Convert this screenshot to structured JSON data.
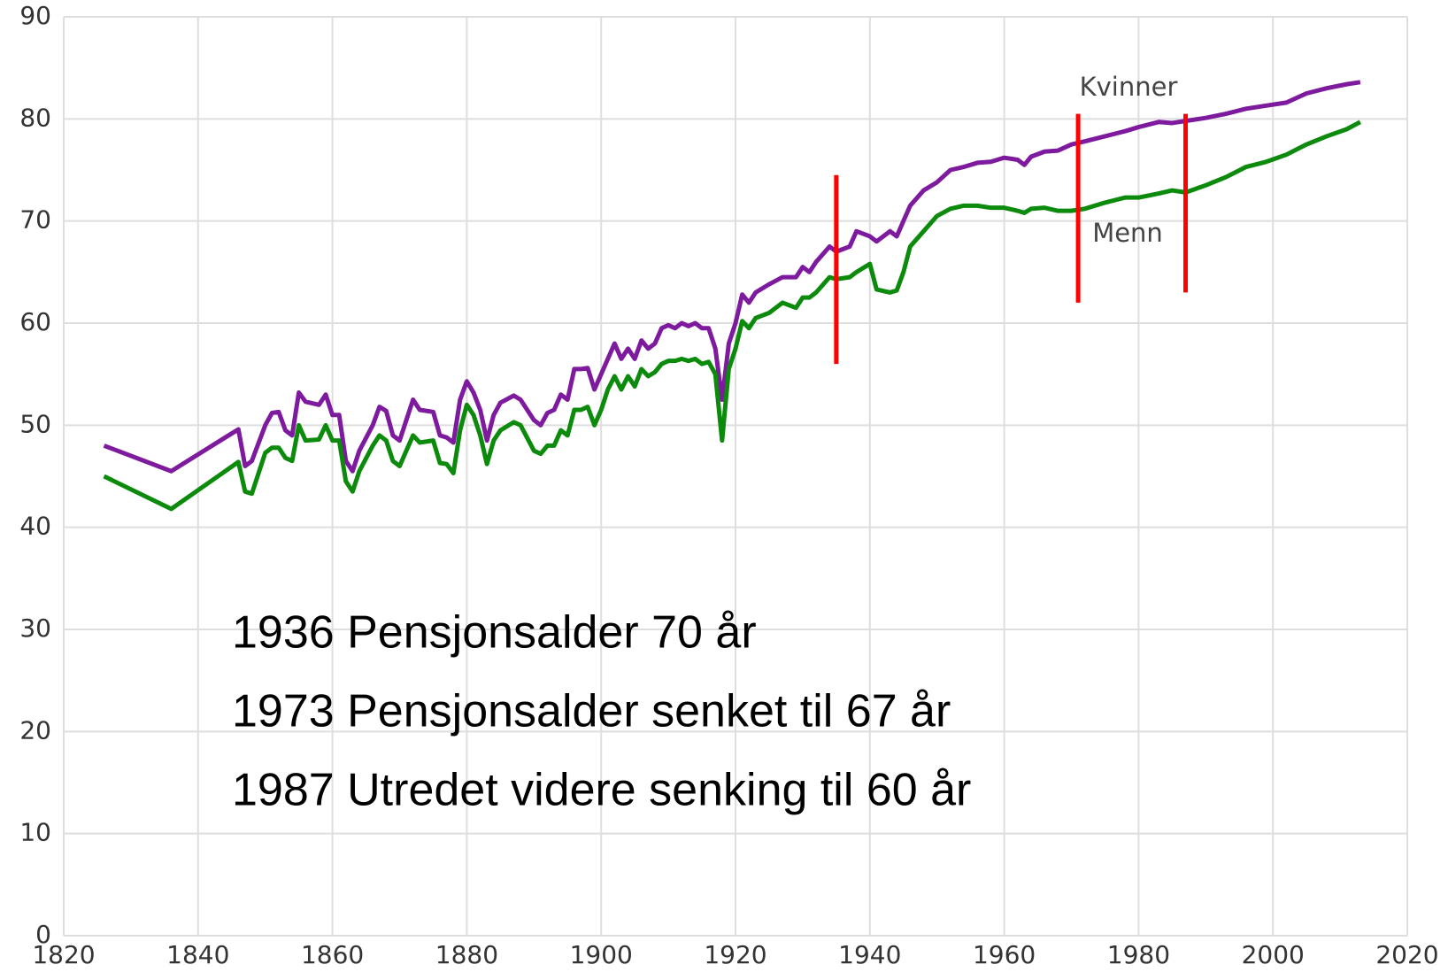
{
  "chart_data": {
    "type": "line",
    "x": [
      1826,
      1836,
      1846,
      1847,
      1848,
      1850,
      1851,
      1852,
      1853,
      1854,
      1855,
      1856,
      1858,
      1859,
      1860,
      1861,
      1862,
      1863,
      1864,
      1866,
      1867,
      1868,
      1869,
      1870,
      1871,
      1872,
      1873,
      1875,
      1876,
      1877,
      1878,
      1879,
      1880,
      1881,
      1882,
      1883,
      1884,
      1885,
      1887,
      1888,
      1890,
      1891,
      1892,
      1893,
      1894,
      1895,
      1896,
      1897,
      1898,
      1899,
      1900,
      1901,
      1902,
      1903,
      1904,
      1905,
      1906,
      1907,
      1908,
      1909,
      1910,
      1911,
      1912,
      1913,
      1914,
      1915,
      1916,
      1917,
      1918,
      1919,
      1920,
      1921,
      1922,
      1923,
      1925,
      1927,
      1929,
      1930,
      1931,
      1932,
      1934,
      1935,
      1937,
      1938,
      1940,
      1941,
      1943,
      1944,
      1945,
      1946,
      1948,
      1950,
      1952,
      1954,
      1956,
      1958,
      1960,
      1962,
      1963,
      1964,
      1966,
      1968,
      1970,
      1972,
      1975,
      1978,
      1980,
      1983,
      1985,
      1987,
      1990,
      1993,
      1996,
      1999,
      2002,
      2005,
      2008,
      2011,
      2013
    ],
    "series": [
      {
        "name": "Kvinner",
        "color": "#7d1a9e",
        "values": [
          48.0,
          45.5,
          49.6,
          46.0,
          46.5,
          50.0,
          51.2,
          51.3,
          49.5,
          49.0,
          53.2,
          52.3,
          52.0,
          53.0,
          51.0,
          51.0,
          46.5,
          45.5,
          47.5,
          50.0,
          51.8,
          51.4,
          49.0,
          48.5,
          50.5,
          52.5,
          51.5,
          51.3,
          49.0,
          48.8,
          48.3,
          52.5,
          54.3,
          53.2,
          51.5,
          48.5,
          51.0,
          52.2,
          52.9,
          52.5,
          50.5,
          50.0,
          51.2,
          51.5,
          53.0,
          52.5,
          55.5,
          55.5,
          55.6,
          53.5,
          55.0,
          56.5,
          58.0,
          56.5,
          57.5,
          56.5,
          58.3,
          57.5,
          58.0,
          59.5,
          59.8,
          59.5,
          60.0,
          59.7,
          60.0,
          59.5,
          59.5,
          57.5,
          52.5,
          58.0,
          60.0,
          62.8,
          62.0,
          63.0,
          63.8,
          64.5,
          64.5,
          65.5,
          65.0,
          66.0,
          67.5,
          67.0,
          67.5,
          69.0,
          68.5,
          68.0,
          69.0,
          68.5,
          70.0,
          71.5,
          73.0,
          73.8,
          75.0,
          75.3,
          75.7,
          75.8,
          76.2,
          76.0,
          75.5,
          76.3,
          76.8,
          76.9,
          77.5,
          77.8,
          78.3,
          78.8,
          79.2,
          79.7,
          79.6,
          79.8,
          80.1,
          80.5,
          81.0,
          81.3,
          81.6,
          82.5,
          83.0,
          83.4,
          83.6
        ]
      },
      {
        "name": "Menn",
        "color": "#0b8a0b",
        "values": [
          45.0,
          41.8,
          46.4,
          43.5,
          43.3,
          47.3,
          47.8,
          47.8,
          46.8,
          46.5,
          50.0,
          48.5,
          48.6,
          50.0,
          48.5,
          48.5,
          44.5,
          43.5,
          45.5,
          48.0,
          49.0,
          48.5,
          46.5,
          46.0,
          47.5,
          49.0,
          48.3,
          48.5,
          46.3,
          46.2,
          45.3,
          49.5,
          52.0,
          51.0,
          49.0,
          46.2,
          48.5,
          49.5,
          50.3,
          50.0,
          47.5,
          47.2,
          48.0,
          48.0,
          49.5,
          49.0,
          51.5,
          51.5,
          51.8,
          50.0,
          51.5,
          53.5,
          54.8,
          53.5,
          54.8,
          53.8,
          55.5,
          54.8,
          55.2,
          56.0,
          56.3,
          56.3,
          56.5,
          56.3,
          56.5,
          56.0,
          56.2,
          55.0,
          48.5,
          55.5,
          57.5,
          60.2,
          59.5,
          60.5,
          61.0,
          62.0,
          61.5,
          62.5,
          62.5,
          63.0,
          64.5,
          64.3,
          64.5,
          65.0,
          65.8,
          63.3,
          63.0,
          63.2,
          65.0,
          67.5,
          69.0,
          70.5,
          71.2,
          71.5,
          71.5,
          71.3,
          71.3,
          71.0,
          70.8,
          71.2,
          71.3,
          71.0,
          71.0,
          71.2,
          71.8,
          72.3,
          72.3,
          72.7,
          73.0,
          72.8,
          73.5,
          74.3,
          75.3,
          75.8,
          76.5,
          77.5,
          78.3,
          79.0,
          79.7
        ]
      }
    ],
    "vlines": [
      {
        "x": 1935,
        "ymin": 56,
        "ymax": 74.5,
        "color": "#ff0000"
      },
      {
        "x": 1971,
        "ymin": 62,
        "ymax": 80.5,
        "color": "#ff0000"
      },
      {
        "x": 1987,
        "ymin": 63,
        "ymax": 80.5,
        "color": "#ff0000"
      }
    ],
    "annotations": [
      "1936 Pensjonsalder 70 år",
      "1973 Pensjonsalder senket til 67 år",
      "1987 Utredet videre senking til 60 år"
    ],
    "xlim": [
      1820,
      2020
    ],
    "xticks": [
      1820,
      1840,
      1860,
      1880,
      1900,
      1920,
      1940,
      1960,
      1980,
      2000,
      2020
    ],
    "ylim": [
      0,
      90
    ],
    "yticks": [
      0,
      10,
      20,
      30,
      40,
      50,
      60,
      70,
      80,
      90
    ],
    "grid": true
  }
}
